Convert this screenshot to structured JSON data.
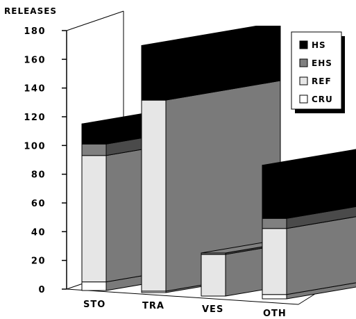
{
  "chart_data": {
    "type": "bar",
    "stacked": true,
    "three_d": true,
    "ylabel": "RELEASES",
    "xlabel": "",
    "title": "",
    "ylim": [
      0,
      180
    ],
    "yticks": [
      0,
      20,
      40,
      60,
      80,
      100,
      120,
      140,
      160,
      180
    ],
    "categories": [
      "STO",
      "TRA",
      "VES",
      "OTH"
    ],
    "series": [
      {
        "name": "CRU",
        "values": [
          6,
          1,
          0,
          3
        ],
        "color": "#ffffff"
      },
      {
        "name": "REF",
        "values": [
          88,
          133,
          29,
          46
        ],
        "color": "#e6e6e6"
      },
      {
        "name": "EHS",
        "values": [
          8,
          0,
          1,
          7
        ],
        "color": "#808080"
      },
      {
        "name": "HS",
        "values": [
          14,
          38,
          0,
          37
        ],
        "color": "#000000"
      }
    ],
    "legend_position": "top-right",
    "legend_order": [
      "HS",
      "EHS",
      "REF",
      "CRU"
    ]
  }
}
